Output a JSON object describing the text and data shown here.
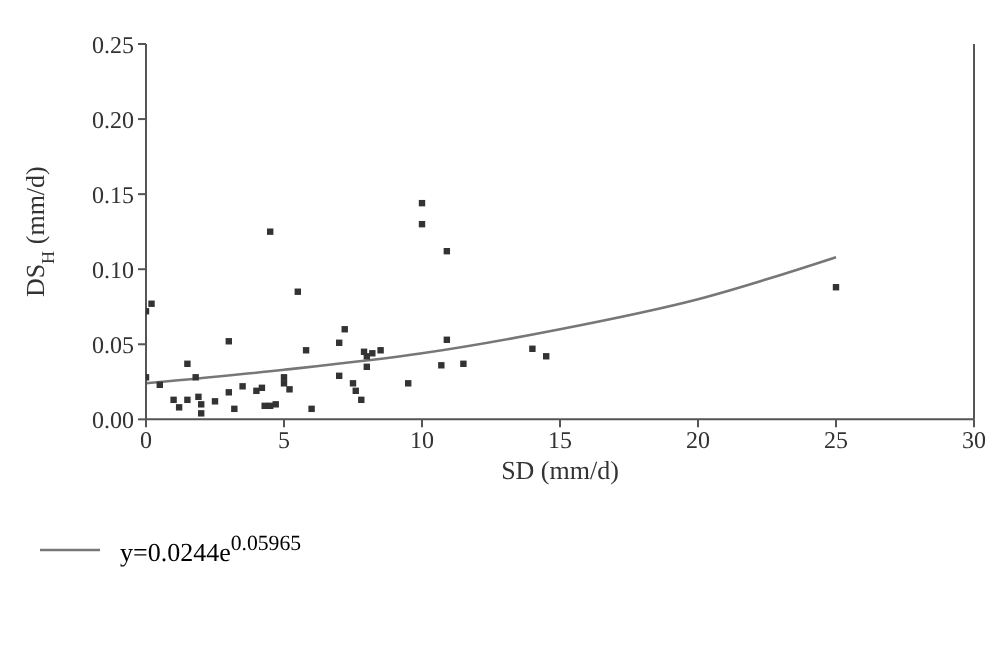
{
  "chart_data": {
    "type": "scatter",
    "xlabel": "SD (mm/d)",
    "ylabel": "DS$_{H}$ (mm/d)",
    "xlim": [
      0,
      30
    ],
    "xticks": [
      0,
      5,
      10,
      15,
      20,
      25,
      30
    ],
    "ylim": [
      0,
      0.25
    ],
    "yticks": [
      {
        "value": 0,
        "label": "0.00"
      },
      {
        "value": 0.05,
        "label": "0.05"
      },
      {
        "value": 0.1,
        "label": "0.10"
      },
      {
        "value": 0.15,
        "label": "0.15"
      },
      {
        "value": 0.2,
        "label": "0.20"
      },
      {
        "value": 0.25,
        "label": "0.25"
      }
    ],
    "marker": "square",
    "grid": false,
    "legend": "bottom left",
    "series": [
      {
        "color": "#333333",
        "x": [
          0.2,
          0.0,
          0.0,
          0.5,
          1.0,
          1.2,
          1.5,
          1.5,
          1.8,
          1.9,
          2.0,
          2.0,
          2.5,
          3.0,
          3.0,
          3.2,
          3.5,
          4.0,
          4.2,
          4.3,
          4.5,
          4.5,
          4.7,
          5.0,
          5.0,
          5.2,
          5.5,
          5.8,
          6.0,
          7.0,
          7.2,
          7.0,
          7.5,
          7.6,
          7.8,
          7.9,
          8.0,
          8.2,
          8.0,
          8.5,
          9.5,
          10.0,
          10.0,
          10.9,
          10.9,
          10.7,
          11.5,
          14.0,
          14.5,
          25.0
        ],
        "values": [
          0.077,
          0.072,
          0.028,
          0.023,
          0.013,
          0.008,
          0.037,
          0.013,
          0.028,
          0.015,
          0.01,
          0.004,
          0.012,
          0.052,
          0.018,
          0.007,
          0.022,
          0.019,
          0.021,
          0.009,
          0.125,
          0.009,
          0.01,
          0.028,
          0.024,
          0.02,
          0.085,
          0.046,
          0.007,
          0.051,
          0.06,
          0.029,
          0.024,
          0.019,
          0.013,
          0.045,
          0.042,
          0.044,
          0.035,
          0.046,
          0.024,
          0.144,
          0.13,
          0.112,
          0.053,
          0.036,
          0.037,
          0.047,
          0.042,
          0.088
        ]
      },
      {
        "type": "line",
        "name": "y=0.0244e$^{0.05965}$",
        "color": "#777777",
        "marker": "none",
        "x": [
          0,
          5,
          10,
          15,
          20,
          25
        ],
        "values": [
          0.024,
          0.033,
          0.044,
          0.06,
          0.08,
          0.108
        ]
      }
    ]
  }
}
